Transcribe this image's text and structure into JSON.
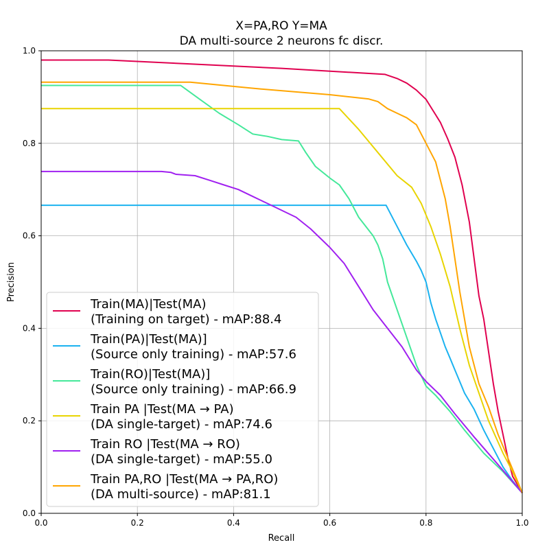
{
  "chart_data": {
    "type": "line",
    "title": "X=PA,RO Y=MA",
    "subtitle": "DA multi-source 2 neurons fc discr.",
    "xlabel": "Recall",
    "ylabel": "Precision",
    "xlim": [
      0,
      1
    ],
    "ylim": [
      0,
      1
    ],
    "xticks": [
      "0.0",
      "0.2",
      "0.4",
      "0.6",
      "0.8",
      "1.0"
    ],
    "yticks": [
      "0.0",
      "0.2",
      "0.4",
      "0.6",
      "0.8",
      "1.0"
    ],
    "grid": true,
    "legend_position": "lower-left",
    "series": [
      {
        "name": "Train(MA)|Test(MA)",
        "name_line2": "(Training on target) - mAP:88.4",
        "color": "#e0004f",
        "points": [
          [
            0,
            0.98
          ],
          [
            0.14,
            0.98
          ],
          [
            0.3,
            0.972
          ],
          [
            0.5,
            0.962
          ],
          [
            0.715,
            0.949
          ],
          [
            0.74,
            0.94
          ],
          [
            0.76,
            0.93
          ],
          [
            0.78,
            0.915
          ],
          [
            0.8,
            0.895
          ],
          [
            0.815,
            0.87
          ],
          [
            0.83,
            0.845
          ],
          [
            0.845,
            0.81
          ],
          [
            0.86,
            0.77
          ],
          [
            0.875,
            0.71
          ],
          [
            0.89,
            0.63
          ],
          [
            0.9,
            0.55
          ],
          [
            0.91,
            0.47
          ],
          [
            0.92,
            0.42
          ],
          [
            0.93,
            0.35
          ],
          [
            0.94,
            0.28
          ],
          [
            0.95,
            0.22
          ],
          [
            0.96,
            0.17
          ],
          [
            0.97,
            0.12
          ],
          [
            0.98,
            0.08
          ],
          [
            1.0,
            0.044
          ]
        ]
      },
      {
        "name": "Train(PA)|Test(MA)]",
        "name_line2": "(Source only training) - mAP:57.6",
        "color": "#1ab2f0",
        "points": [
          [
            0,
            0.666
          ],
          [
            0.717,
            0.666
          ],
          [
            0.74,
            0.62
          ],
          [
            0.76,
            0.58
          ],
          [
            0.78,
            0.545
          ],
          [
            0.79,
            0.525
          ],
          [
            0.8,
            0.5
          ],
          [
            0.81,
            0.455
          ],
          [
            0.82,
            0.42
          ],
          [
            0.83,
            0.39
          ],
          [
            0.84,
            0.36
          ],
          [
            0.85,
            0.335
          ],
          [
            0.86,
            0.31
          ],
          [
            0.87,
            0.285
          ],
          [
            0.88,
            0.26
          ],
          [
            0.9,
            0.225
          ],
          [
            0.92,
            0.18
          ],
          [
            0.94,
            0.14
          ],
          [
            0.96,
            0.1
          ],
          [
            0.98,
            0.07
          ],
          [
            1.0,
            0.044
          ]
        ]
      },
      {
        "name": "Train(RO)|Test(MA)]",
        "name_line2": "(Source only training) - mAP:66.9",
        "color": "#44e89a",
        "points": [
          [
            0,
            0.925
          ],
          [
            0.29,
            0.925
          ],
          [
            0.33,
            0.895
          ],
          [
            0.37,
            0.865
          ],
          [
            0.41,
            0.84
          ],
          [
            0.44,
            0.82
          ],
          [
            0.47,
            0.815
          ],
          [
            0.5,
            0.808
          ],
          [
            0.535,
            0.805
          ],
          [
            0.55,
            0.78
          ],
          [
            0.57,
            0.75
          ],
          [
            0.6,
            0.725
          ],
          [
            0.62,
            0.71
          ],
          [
            0.64,
            0.68
          ],
          [
            0.66,
            0.64
          ],
          [
            0.69,
            0.6
          ],
          [
            0.7,
            0.58
          ],
          [
            0.71,
            0.55
          ],
          [
            0.72,
            0.5
          ],
          [
            0.74,
            0.44
          ],
          [
            0.76,
            0.38
          ],
          [
            0.78,
            0.32
          ],
          [
            0.8,
            0.275
          ],
          [
            0.82,
            0.255
          ],
          [
            0.85,
            0.22
          ],
          [
            0.88,
            0.18
          ],
          [
            0.92,
            0.13
          ],
          [
            0.96,
            0.09
          ],
          [
            1.0,
            0.044
          ]
        ]
      },
      {
        "name": "Train PA |Test(MA → PA)",
        "name_line2": "(DA single-target) - mAP:74.6",
        "color": "#e8d400",
        "points": [
          [
            0,
            0.875
          ],
          [
            0.62,
            0.875
          ],
          [
            0.66,
            0.83
          ],
          [
            0.7,
            0.78
          ],
          [
            0.74,
            0.73
          ],
          [
            0.77,
            0.705
          ],
          [
            0.79,
            0.67
          ],
          [
            0.81,
            0.62
          ],
          [
            0.83,
            0.56
          ],
          [
            0.85,
            0.49
          ],
          [
            0.87,
            0.4
          ],
          [
            0.89,
            0.32
          ],
          [
            0.91,
            0.26
          ],
          [
            0.93,
            0.2
          ],
          [
            0.96,
            0.13
          ],
          [
            0.98,
            0.09
          ],
          [
            1.0,
            0.044
          ]
        ]
      },
      {
        "name": "Train RO |Test(MA → RO)",
        "name_line2": "(DA single-target) - mAP:55.0",
        "color": "#a020f0",
        "points": [
          [
            0,
            0.739
          ],
          [
            0.25,
            0.739
          ],
          [
            0.27,
            0.737
          ],
          [
            0.28,
            0.733
          ],
          [
            0.32,
            0.73
          ],
          [
            0.35,
            0.72
          ],
          [
            0.38,
            0.71
          ],
          [
            0.41,
            0.7
          ],
          [
            0.44,
            0.685
          ],
          [
            0.47,
            0.67
          ],
          [
            0.5,
            0.655
          ],
          [
            0.53,
            0.64
          ],
          [
            0.56,
            0.615
          ],
          [
            0.6,
            0.575
          ],
          [
            0.63,
            0.54
          ],
          [
            0.66,
            0.49
          ],
          [
            0.69,
            0.44
          ],
          [
            0.72,
            0.4
          ],
          [
            0.75,
            0.36
          ],
          [
            0.78,
            0.31
          ],
          [
            0.8,
            0.285
          ],
          [
            0.83,
            0.255
          ],
          [
            0.86,
            0.215
          ],
          [
            0.9,
            0.165
          ],
          [
            0.95,
            0.105
          ],
          [
            1.0,
            0.044
          ]
        ]
      },
      {
        "name": "Train PA,RO |Test(MA → PA,RO)",
        "name_line2": "(DA multi-source) - mAP:81.1",
        "color": "#ffa500",
        "points": [
          [
            0,
            0.932
          ],
          [
            0.31,
            0.932
          ],
          [
            0.45,
            0.918
          ],
          [
            0.6,
            0.905
          ],
          [
            0.68,
            0.896
          ],
          [
            0.7,
            0.89
          ],
          [
            0.72,
            0.875
          ],
          [
            0.74,
            0.865
          ],
          [
            0.76,
            0.855
          ],
          [
            0.78,
            0.84
          ],
          [
            0.8,
            0.8
          ],
          [
            0.82,
            0.76
          ],
          [
            0.83,
            0.72
          ],
          [
            0.84,
            0.68
          ],
          [
            0.85,
            0.62
          ],
          [
            0.86,
            0.55
          ],
          [
            0.87,
            0.48
          ],
          [
            0.88,
            0.42
          ],
          [
            0.89,
            0.36
          ],
          [
            0.9,
            0.32
          ],
          [
            0.91,
            0.28
          ],
          [
            0.93,
            0.23
          ],
          [
            0.95,
            0.17
          ],
          [
            0.97,
            0.12
          ],
          [
            0.99,
            0.07
          ],
          [
            1.0,
            0.044
          ]
        ]
      }
    ]
  }
}
